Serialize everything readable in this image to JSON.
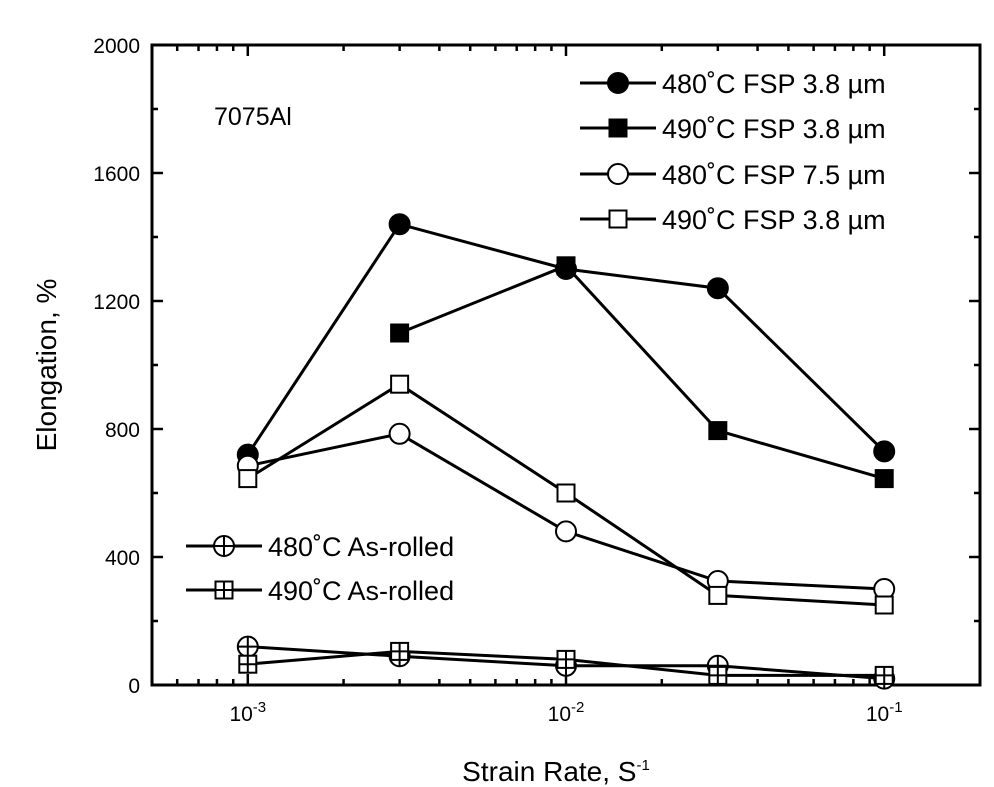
{
  "chart_data": {
    "type": "line",
    "title": "",
    "annotation": "7075Al",
    "xlabel": {
      "base": "Strain Rate, S",
      "sup": "-1"
    },
    "ylabel": "Elongation, %",
    "xscale": "log",
    "xlim": [
      0.0005,
      0.2
    ],
    "ylim": [
      0,
      2000
    ],
    "yticks": [
      0,
      400,
      800,
      1200,
      1600,
      2000
    ],
    "xticks": [
      {
        "value": 0.001,
        "base": "10",
        "exp": "-3"
      },
      {
        "value": 0.01,
        "base": "10",
        "exp": "-2"
      },
      {
        "value": 0.1,
        "base": "10",
        "exp": "-1"
      }
    ],
    "grid": false,
    "legend_placement": [
      "top-right",
      "bottom-left"
    ],
    "series": [
      {
        "name": "480˚C  FSP 3.8 µm",
        "marker": "circle-filled",
        "legend_group": "top",
        "x": [
          0.001,
          0.003,
          0.01,
          0.03,
          0.1
        ],
        "y": [
          720,
          1440,
          1300,
          1240,
          730
        ]
      },
      {
        "name": "490˚C  FSP 3.8 µm",
        "marker": "square-filled",
        "legend_group": "top",
        "x": [
          0.003,
          0.01,
          0.03,
          0.1
        ],
        "y": [
          1100,
          1310,
          795,
          645
        ]
      },
      {
        "name": "480˚C  FSP 7.5 µm",
        "marker": "circle-open",
        "legend_group": "top",
        "x": [
          0.001,
          0.003,
          0.01,
          0.03,
          0.1
        ],
        "y": [
          685,
          785,
          480,
          325,
          300
        ]
      },
      {
        "name": "490˚C  FSP 3.8 µm",
        "marker": "square-open",
        "legend_group": "top",
        "x": [
          0.001,
          0.003,
          0.01,
          0.03,
          0.1
        ],
        "y": [
          645,
          940,
          600,
          280,
          250
        ]
      },
      {
        "name": "480˚C  As-rolled",
        "marker": "circle-cross",
        "legend_group": "bottom",
        "x": [
          0.001,
          0.003,
          0.01,
          0.03,
          0.1
        ],
        "y": [
          120,
          90,
          60,
          60,
          20
        ]
      },
      {
        "name": "490˚C  As-rolled",
        "marker": "square-cross",
        "legend_group": "bottom",
        "x": [
          0.001,
          0.003,
          0.01,
          0.03,
          0.1
        ],
        "y": [
          65,
          105,
          80,
          30,
          30
        ]
      }
    ]
  }
}
